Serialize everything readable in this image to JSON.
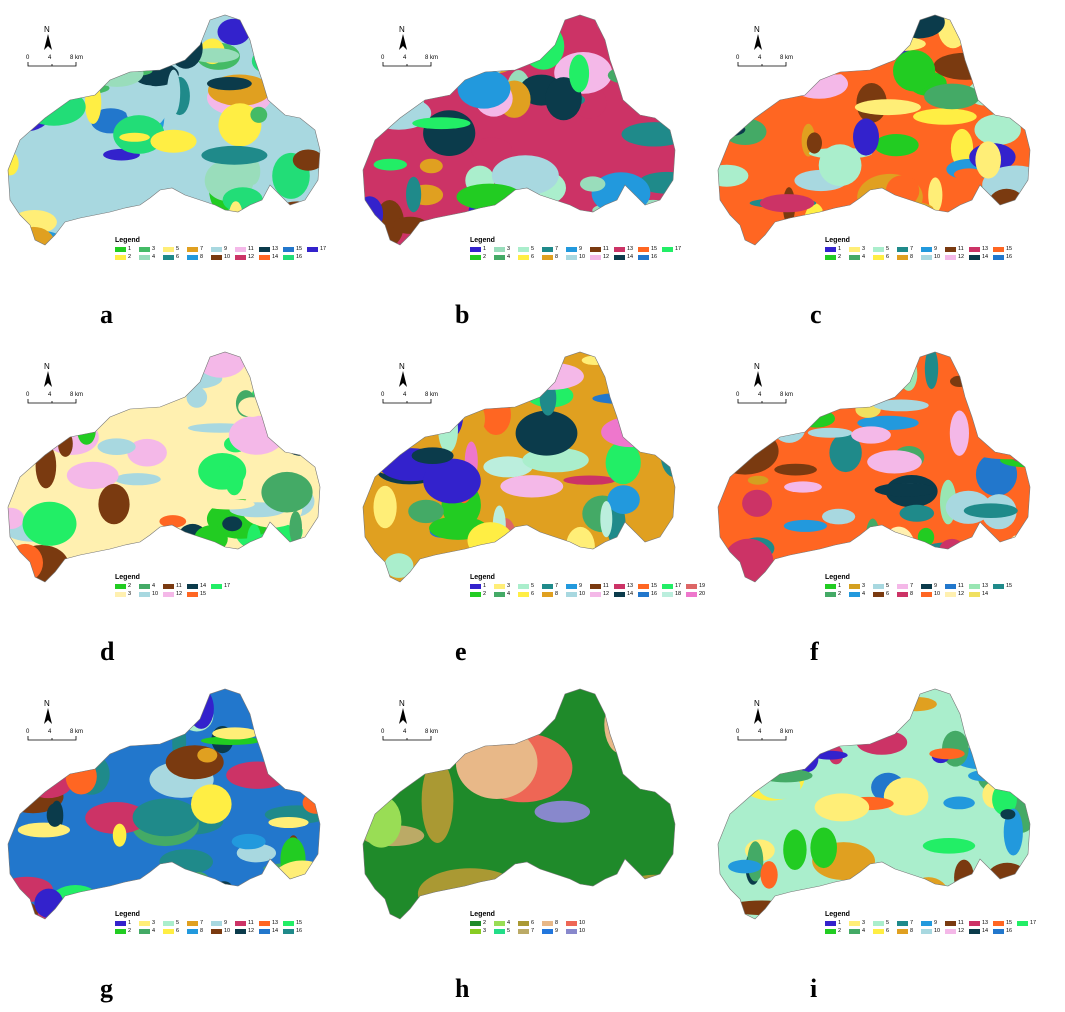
{
  "compass_label": "N",
  "scale_labels": [
    "0",
    "4",
    "8 km"
  ],
  "legend_title": "Legend",
  "panels": [
    {
      "letter": "a",
      "legend": [
        {
          "label": "1",
          "color": "#22cc22"
        },
        {
          "label": "2",
          "color": "#ffee44"
        },
        {
          "label": "3",
          "color": "#44bb66"
        },
        {
          "label": "4",
          "color": "#99ddbb"
        },
        {
          "label": "5",
          "color": "#ffee77"
        },
        {
          "label": "6",
          "color": "#1f8a8a"
        },
        {
          "label": "7",
          "color": "#e0a020"
        },
        {
          "label": "8",
          "color": "#2299dd"
        },
        {
          "label": "9",
          "color": "#a8d8e0"
        },
        {
          "label": "10",
          "color": "#7a3a10"
        },
        {
          "label": "11",
          "color": "#f4b8e8"
        },
        {
          "label": "12",
          "color": "#cc3366"
        },
        {
          "label": "13",
          "color": "#0b3b4b"
        },
        {
          "label": "14",
          "color": "#ff6622"
        },
        {
          "label": "15",
          "color": "#2277cc"
        },
        {
          "label": "16",
          "color": "#22dd77"
        },
        {
          "label": "17",
          "color": "#3322cc"
        }
      ]
    },
    {
      "letter": "b",
      "legend": [
        {
          "label": "1",
          "color": "#3322cc"
        },
        {
          "label": "2",
          "color": "#22cc22"
        },
        {
          "label": "3",
          "color": "#99ddbb"
        },
        {
          "label": "4",
          "color": "#44aa66"
        },
        {
          "label": "5",
          "color": "#aaeecc"
        },
        {
          "label": "6",
          "color": "#ffee44"
        },
        {
          "label": "7",
          "color": "#1f8a8a"
        },
        {
          "label": "8",
          "color": "#e0a020"
        },
        {
          "label": "9",
          "color": "#2299dd"
        },
        {
          "label": "10",
          "color": "#a8d8e0"
        },
        {
          "label": "11",
          "color": "#7a3a10"
        },
        {
          "label": "12",
          "color": "#f4b8e8"
        },
        {
          "label": "13",
          "color": "#cc3366"
        },
        {
          "label": "14",
          "color": "#0b3b4b"
        },
        {
          "label": "15",
          "color": "#ff6622"
        },
        {
          "label": "16",
          "color": "#2277cc"
        },
        {
          "label": "17",
          "color": "#22ee66"
        }
      ]
    },
    {
      "letter": "c",
      "legend": [
        {
          "label": "1",
          "color": "#3322cc"
        },
        {
          "label": "2",
          "color": "#22cc22"
        },
        {
          "label": "3",
          "color": "#ffee77"
        },
        {
          "label": "4",
          "color": "#44aa66"
        },
        {
          "label": "5",
          "color": "#aaeecc"
        },
        {
          "label": "6",
          "color": "#ffee44"
        },
        {
          "label": "7",
          "color": "#1f8a8a"
        },
        {
          "label": "8",
          "color": "#e0a020"
        },
        {
          "label": "9",
          "color": "#2299dd"
        },
        {
          "label": "10",
          "color": "#a8d8e0"
        },
        {
          "label": "11",
          "color": "#7a3a10"
        },
        {
          "label": "12",
          "color": "#f4b8e8"
        },
        {
          "label": "13",
          "color": "#cc3366"
        },
        {
          "label": "14",
          "color": "#0b3b4b"
        },
        {
          "label": "15",
          "color": "#ff6622"
        },
        {
          "label": "16",
          "color": "#2277cc"
        }
      ]
    },
    {
      "letter": "d",
      "legend": [
        {
          "label": "2",
          "color": "#22cc22"
        },
        {
          "label": "3",
          "color": "#fff0b0"
        },
        {
          "label": "4",
          "color": "#44aa66"
        },
        {
          "label": "10",
          "color": "#a8d8e0"
        },
        {
          "label": "11",
          "color": "#7a3a10"
        },
        {
          "label": "12",
          "color": "#f4b8e8"
        },
        {
          "label": "14",
          "color": "#0b3b4b"
        },
        {
          "label": "15",
          "color": "#ff6622"
        },
        {
          "label": "17",
          "color": "#22ee66"
        }
      ]
    },
    {
      "letter": "e",
      "legend": [
        {
          "label": "1",
          "color": "#3322cc"
        },
        {
          "label": "2",
          "color": "#22cc22"
        },
        {
          "label": "3",
          "color": "#ffee77"
        },
        {
          "label": "4",
          "color": "#44aa66"
        },
        {
          "label": "5",
          "color": "#aaeecc"
        },
        {
          "label": "6",
          "color": "#ffee44"
        },
        {
          "label": "7",
          "color": "#1f8a8a"
        },
        {
          "label": "8",
          "color": "#e0a020"
        },
        {
          "label": "9",
          "color": "#2299dd"
        },
        {
          "label": "10",
          "color": "#a8d8e0"
        },
        {
          "label": "11",
          "color": "#7a3a10"
        },
        {
          "label": "12",
          "color": "#f4b8e8"
        },
        {
          "label": "13",
          "color": "#cc3366"
        },
        {
          "label": "14",
          "color": "#0b3b4b"
        },
        {
          "label": "15",
          "color": "#ff6622"
        },
        {
          "label": "16",
          "color": "#2277cc"
        },
        {
          "label": "17",
          "color": "#22ee66"
        },
        {
          "label": "18",
          "color": "#bbeedd"
        },
        {
          "label": "19",
          "color": "#dd6666"
        },
        {
          "label": "20",
          "color": "#ee77cc"
        }
      ]
    },
    {
      "letter": "f",
      "legend": [
        {
          "label": "1",
          "color": "#22cc22"
        },
        {
          "label": "2",
          "color": "#44aa66"
        },
        {
          "label": "3",
          "color": "#d4a020"
        },
        {
          "label": "4",
          "color": "#2299dd"
        },
        {
          "label": "5",
          "color": "#a8d8e0"
        },
        {
          "label": "6",
          "color": "#7a3a10"
        },
        {
          "label": "7",
          "color": "#f4b8e8"
        },
        {
          "label": "8",
          "color": "#cc3366"
        },
        {
          "label": "9",
          "color": "#0b3b4b"
        },
        {
          "label": "10",
          "color": "#ff6622"
        },
        {
          "label": "11",
          "color": "#2277cc"
        },
        {
          "label": "12",
          "color": "#fff0b0"
        },
        {
          "label": "13",
          "color": "#99e6b3"
        },
        {
          "label": "14",
          "color": "#f0e060"
        },
        {
          "label": "15",
          "color": "#1f8a8a"
        }
      ]
    },
    {
      "letter": "g",
      "legend": [
        {
          "label": "1",
          "color": "#3322cc"
        },
        {
          "label": "2",
          "color": "#22cc22"
        },
        {
          "label": "3",
          "color": "#ffee77"
        },
        {
          "label": "4",
          "color": "#44aa66"
        },
        {
          "label": "5",
          "color": "#aaeecc"
        },
        {
          "label": "6",
          "color": "#ffee44"
        },
        {
          "label": "7",
          "color": "#e0a020"
        },
        {
          "label": "8",
          "color": "#2299dd"
        },
        {
          "label": "9",
          "color": "#a8d8e0"
        },
        {
          "label": "10",
          "color": "#7a3a10"
        },
        {
          "label": "11",
          "color": "#cc3366"
        },
        {
          "label": "12",
          "color": "#0b3b4b"
        },
        {
          "label": "13",
          "color": "#ff6622"
        },
        {
          "label": "14",
          "color": "#2277cc"
        },
        {
          "label": "15",
          "color": "#22ee66"
        },
        {
          "label": "16",
          "color": "#1f8a8a"
        }
      ]
    },
    {
      "letter": "h",
      "legend": [
        {
          "label": "2",
          "color": "#1f8a2a"
        },
        {
          "label": "3",
          "color": "#88cc22"
        },
        {
          "label": "4",
          "color": "#99dd55"
        },
        {
          "label": "5",
          "color": "#22dd88"
        },
        {
          "label": "6",
          "color": "#aa9933"
        },
        {
          "label": "7",
          "color": "#bbaa66"
        },
        {
          "label": "8",
          "color": "#e8b888"
        },
        {
          "label": "9",
          "color": "#2277dd"
        },
        {
          "label": "10",
          "color": "#ee6655"
        },
        {
          "label": "10",
          "color": "#8888cc"
        }
      ]
    },
    {
      "letter": "i",
      "legend": [
        {
          "label": "1",
          "color": "#3322cc"
        },
        {
          "label": "2",
          "color": "#22cc22"
        },
        {
          "label": "3",
          "color": "#ffee77"
        },
        {
          "label": "4",
          "color": "#44aa66"
        },
        {
          "label": "5",
          "color": "#aaeecc"
        },
        {
          "label": "6",
          "color": "#ffee44"
        },
        {
          "label": "7",
          "color": "#1f8a8a"
        },
        {
          "label": "8",
          "color": "#e0a020"
        },
        {
          "label": "9",
          "color": "#2299dd"
        },
        {
          "label": "10",
          "color": "#a8d8e0"
        },
        {
          "label": "11",
          "color": "#7a3a10"
        },
        {
          "label": "12",
          "color": "#f4b8e8"
        },
        {
          "label": "13",
          "color": "#cc3366"
        },
        {
          "label": "14",
          "color": "#0b3b4b"
        },
        {
          "label": "15",
          "color": "#ff6622"
        },
        {
          "label": "16",
          "color": "#2277cc"
        },
        {
          "label": "17",
          "color": "#22ee66"
        }
      ]
    }
  ]
}
